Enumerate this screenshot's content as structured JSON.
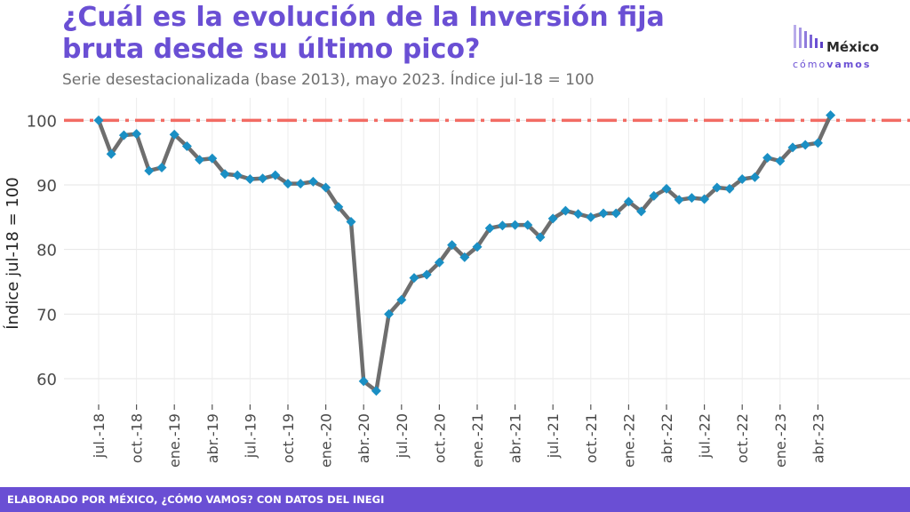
{
  "title": "¿Cuál es la evolución de la Inversión fija bruta desde su último pico?",
  "subtitle": "Serie desestacionalizada (base 2013), mayo 2023. Índice jul-18 = 100",
  "logo": {
    "word": "México",
    "sub_a": "cómo",
    "sub_b": "vamos"
  },
  "footer": "ELABORADO POR MÉXICO, ¿CÓMO VAMOS? CON DATOS DEL INEGI",
  "colors": {
    "accent": "#6a4fd4",
    "line": "#6e6e6e",
    "marker": "#1a8fc4",
    "reference": "#f26b63"
  },
  "chart_data": {
    "type": "line",
    "title": "¿Cuál es la evolución de la Inversión fija bruta desde su último pico?",
    "ylabel": "Índice jul-18 = 100",
    "ylim": [
      56,
      103.5
    ],
    "yticks": [
      60,
      70,
      80,
      90,
      100
    ],
    "grid": true,
    "reference_line": 100,
    "xticks": [
      {
        "index": 0,
        "label": "jul.-18"
      },
      {
        "index": 3,
        "label": "oct.-18"
      },
      {
        "index": 6,
        "label": "ene.-19"
      },
      {
        "index": 9,
        "label": "abr.-19"
      },
      {
        "index": 12,
        "label": "jul.-19"
      },
      {
        "index": 15,
        "label": "oct.-19"
      },
      {
        "index": 18,
        "label": "ene.-20"
      },
      {
        "index": 21,
        "label": "abr.-20"
      },
      {
        "index": 24,
        "label": "jul.-20"
      },
      {
        "index": 27,
        "label": "oct.-20"
      },
      {
        "index": 30,
        "label": "ene.-21"
      },
      {
        "index": 33,
        "label": "abr.-21"
      },
      {
        "index": 36,
        "label": "jul.-21"
      },
      {
        "index": 39,
        "label": "oct.-21"
      },
      {
        "index": 42,
        "label": "ene.-22"
      },
      {
        "index": 45,
        "label": "abr.-22"
      },
      {
        "index": 48,
        "label": "jul.-22"
      },
      {
        "index": 51,
        "label": "oct.-22"
      },
      {
        "index": 54,
        "label": "ene.-23"
      },
      {
        "index": 57,
        "label": "abr.-23"
      }
    ],
    "values": [
      100,
      94.8,
      97.7,
      97.9,
      92.2,
      92.7,
      97.8,
      96.0,
      93.9,
      94.1,
      91.7,
      91.5,
      90.9,
      91.0,
      91.5,
      90.2,
      90.2,
      90.5,
      89.6,
      86.6,
      84.3,
      59.6,
      58.1,
      70.0,
      72.2,
      75.6,
      76.1,
      78.0,
      80.7,
      78.8,
      80.4,
      83.3,
      83.7,
      83.8,
      83.8,
      81.9,
      84.8,
      86.0,
      85.5,
      85.0,
      85.6,
      85.6,
      87.4,
      85.9,
      88.3,
      89.4,
      87.7,
      88.0,
      87.8,
      89.6,
      89.4,
      90.9,
      91.2,
      94.2,
      93.7,
      95.8,
      96.2,
      96.5,
      100.8
    ]
  }
}
